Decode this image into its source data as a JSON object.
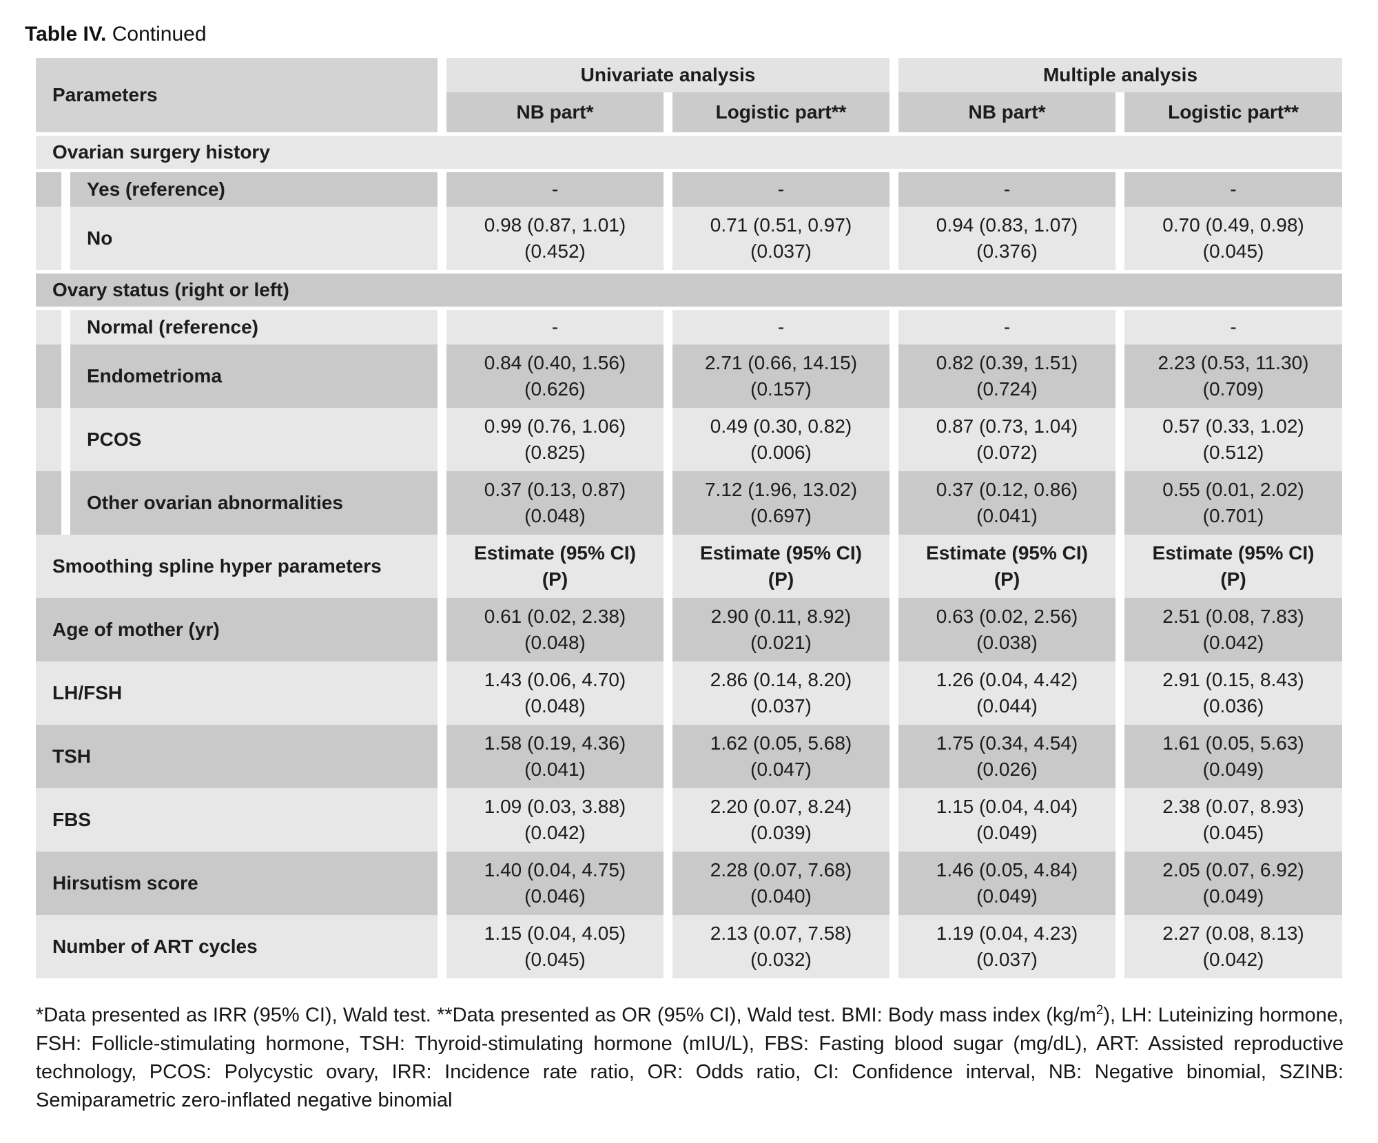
{
  "title": {
    "label": "Table IV.",
    "rest": "Continued"
  },
  "colors": {
    "row_dark": "#c9c9c9",
    "row_light": "#e7e7e7",
    "header_param": "#d3d3d3",
    "header_group": "#e3e3e3",
    "header_sub": "#cbcbcb",
    "text": "#1c1c1c",
    "background": "#ffffff"
  },
  "table": {
    "header": {
      "parameters": "Parameters",
      "groups": [
        {
          "label": "Univariate analysis"
        },
        {
          "label": "Multiple analysis"
        }
      ],
      "subheaders": [
        "NB part*",
        "Logistic part**",
        "NB part*",
        "Logistic part**"
      ]
    },
    "rows": [
      {
        "type": "section",
        "label": "Ovarian surgery history"
      },
      {
        "type": "sub",
        "label": "Yes (reference)",
        "values": [
          "-",
          "-",
          "-",
          "-"
        ]
      },
      {
        "type": "sub",
        "label": "No",
        "values": [
          [
            "0.98 (0.87, 1.01)",
            "(0.452)"
          ],
          [
            "0.71 (0.51, 0.97)",
            "(0.037)"
          ],
          [
            "0.94 (0.83, 1.07)",
            "(0.376)"
          ],
          [
            "0.70 (0.49, 0.98)",
            "(0.045)"
          ]
        ]
      },
      {
        "type": "section",
        "label": "Ovary status (right or left)"
      },
      {
        "type": "sub",
        "label": "Normal (reference)",
        "values": [
          "-",
          "-",
          "-",
          "-"
        ]
      },
      {
        "type": "sub",
        "label": "Endometrioma",
        "values": [
          [
            "0.84 (0.40, 1.56)",
            "(0.626)"
          ],
          [
            "2.71 (0.66, 14.15)",
            "(0.157)"
          ],
          [
            "0.82 (0.39, 1.51)",
            "(0.724)"
          ],
          [
            "2.23 (0.53, 11.30)",
            "(0.709)"
          ]
        ]
      },
      {
        "type": "sub",
        "label": "PCOS",
        "values": [
          [
            "0.99 (0.76, 1.06)",
            "(0.825)"
          ],
          [
            "0.49 (0.30, 0.82)",
            "(0.006)"
          ],
          [
            "0.87 (0.73, 1.04)",
            "(0.072)"
          ],
          [
            "0.57 (0.33, 1.02)",
            "(0.512)"
          ]
        ]
      },
      {
        "type": "sub",
        "label": "Other ovarian abnormalities",
        "values": [
          [
            "0.37 (0.13, 0.87)",
            "(0.048)"
          ],
          [
            "7.12 (1.96, 13.02)",
            "(0.697)"
          ],
          [
            "0.37 (0.12, 0.86)",
            "(0.041)"
          ],
          [
            "0.55 (0.01, 2.02)",
            "(0.701)"
          ]
        ]
      },
      {
        "type": "plain",
        "label": "Smoothing spline hyper parameters",
        "bold_values": true,
        "values": [
          [
            "Estimate (95% CI)",
            "(P)"
          ],
          [
            "Estimate (95% CI)",
            "(P)"
          ],
          [
            "Estimate (95% CI)",
            "(P)"
          ],
          [
            "Estimate (95% CI)",
            "(P)"
          ]
        ]
      },
      {
        "type": "plain",
        "label": "Age of mother (yr)",
        "values": [
          [
            "0.61 (0.02, 2.38)",
            "(0.048)"
          ],
          [
            "2.90 (0.11, 8.92)",
            "(0.021)"
          ],
          [
            "0.63 (0.02, 2.56)",
            "(0.038)"
          ],
          [
            "2.51 (0.08, 7.83)",
            "(0.042)"
          ]
        ]
      },
      {
        "type": "plain",
        "label": "LH/FSH",
        "values": [
          [
            "1.43 (0.06, 4.70)",
            "(0.048)"
          ],
          [
            "2.86 (0.14, 8.20)",
            "(0.037)"
          ],
          [
            "1.26 (0.04, 4.42)",
            "(0.044)"
          ],
          [
            "2.91 (0.15, 8.43)",
            "(0.036)"
          ]
        ]
      },
      {
        "type": "plain",
        "label": "TSH",
        "values": [
          [
            "1.58 (0.19, 4.36)",
            "(0.041)"
          ],
          [
            "1.62 (0.05, 5.68)",
            "(0.047)"
          ],
          [
            "1.75 (0.34, 4.54)",
            "(0.026)"
          ],
          [
            "1.61 (0.05, 5.63)",
            "(0.049)"
          ]
        ]
      },
      {
        "type": "plain",
        "label": "FBS",
        "values": [
          [
            "1.09 (0.03, 3.88)",
            "(0.042)"
          ],
          [
            "2.20 (0.07, 8.24)",
            "(0.039)"
          ],
          [
            "1.15 (0.04, 4.04)",
            "(0.049)"
          ],
          [
            "2.38 (0.07, 8.93)",
            "(0.045)"
          ]
        ]
      },
      {
        "type": "plain",
        "label": "Hirsutism score",
        "values": [
          [
            "1.40 (0.04, 4.75)",
            "(0.046)"
          ],
          [
            "2.28 (0.07, 7.68)",
            "(0.040)"
          ],
          [
            "1.46 (0.05, 4.84)",
            "(0.049)"
          ],
          [
            "2.05 (0.07, 6.92)",
            "(0.049)"
          ]
        ]
      },
      {
        "type": "plain",
        "label": "Number of ART cycles",
        "values": [
          [
            "1.15 (0.04, 4.05)",
            "(0.045)"
          ],
          [
            "2.13 (0.07, 7.58)",
            "(0.032)"
          ],
          [
            "1.19 (0.04, 4.23)",
            "(0.037)"
          ],
          [
            "2.27 (0.08, 8.13)",
            "(0.042)"
          ]
        ]
      }
    ]
  },
  "footnote": {
    "part1": "*Data presented as IRR (95% CI), Wald test. **Data presented as OR (95% CI), Wald test. BMI: Body mass index (kg/m",
    "sup": "2",
    "part2": "), LH: Luteinizing hormone, FSH: Follicle-stimulating hormone, TSH: Thyroid-stimulating hormone (mIU/L), FBS: Fasting blood sugar (mg/dL), ART: Assisted reproductive technology, PCOS: Polycystic ovary, IRR: Incidence rate ratio, OR: Odds ratio, CI: Confidence interval, NB: Negative binomial, SZINB: Semiparametric zero-inflated negative binomial"
  }
}
